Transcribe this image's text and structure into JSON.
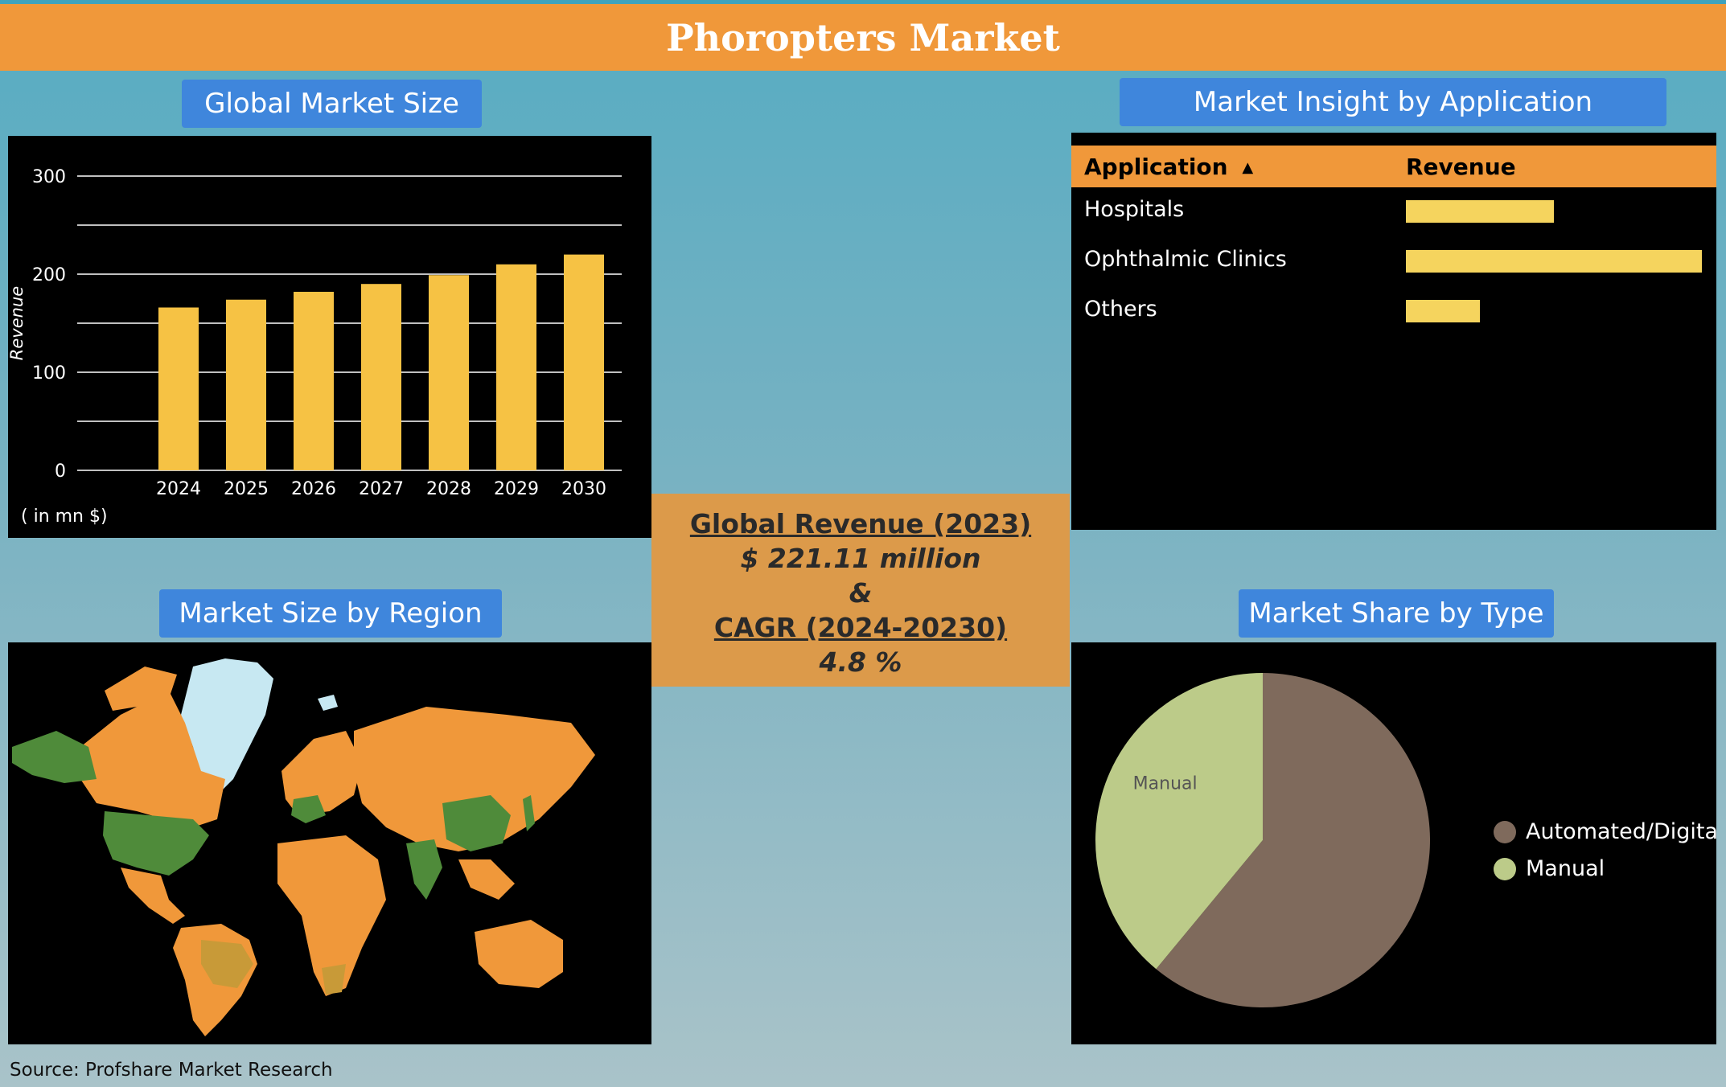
{
  "title": "Phoropters Market",
  "sections": {
    "global_market_size": "Global Market Size",
    "market_insight": "Market Insight by Application",
    "market_region": "Market Size by Region",
    "market_share": "Market Share by Type"
  },
  "center": {
    "revenue_label": "Global Revenue (2023)",
    "revenue_value": "$ 221.11 million",
    "amp": "&",
    "cagr_label": "CAGR (2024-20230)",
    "cagr_value": "4.8 %"
  },
  "source": "Source: Profshare Market Research",
  "colors": {
    "bar": "#f6c244",
    "app_bar": "#f5d45e",
    "automated": "#7f6a5c",
    "manual": "#bccb89",
    "map_land": "#f0983a",
    "map_high": "#4f8b3a",
    "map_mid": "#c89a38",
    "map_ice": "#c7e8f2"
  },
  "chart_data": [
    {
      "type": "bar",
      "categories": [
        "2024",
        "2025",
        "2026",
        "2027",
        "2028",
        "2029",
        "2030"
      ],
      "values": [
        166,
        174,
        182,
        190,
        199,
        210,
        220
      ],
      "ylabel": "Revenue",
      "unit_note": "( in mn $)",
      "ylim": [
        0,
        300
      ],
      "yticks": [
        0,
        100,
        200,
        300
      ],
      "grid": true
    },
    {
      "type": "table",
      "columns": [
        "Application",
        "Revenue"
      ],
      "rows": [
        {
          "label": "Hospitals",
          "value": 50
        },
        {
          "label": "Ophthalmic Clinics",
          "value": 100
        },
        {
          "label": "Others",
          "value": 25
        }
      ]
    },
    {
      "type": "pie",
      "labels": [
        "Automated/Digital",
        "Manual"
      ],
      "values": [
        61,
        39
      ],
      "slice_labels": [
        "",
        "Manual"
      ],
      "legend": "right"
    }
  ]
}
